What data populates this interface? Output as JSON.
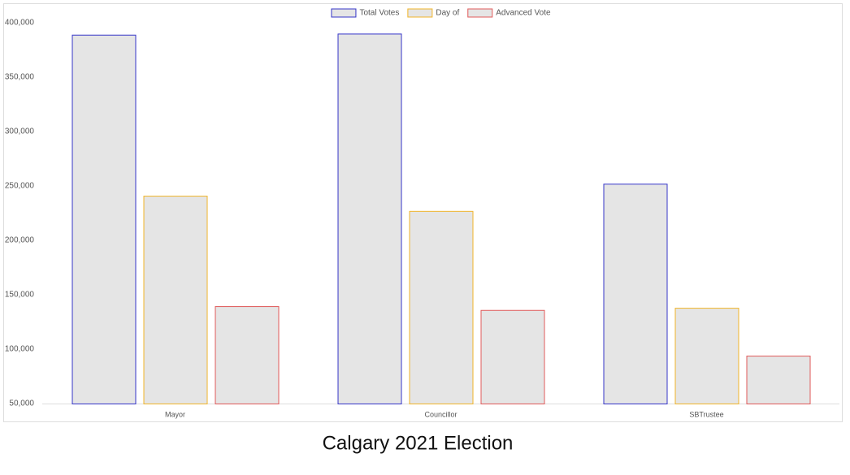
{
  "chart_data": {
    "type": "bar",
    "title": "Calgary 2021 Election",
    "categories": [
      "Mayor",
      "Councillor",
      "SBTrustee"
    ],
    "series": [
      {
        "name": "Total Votes",
        "color": "#3535c8",
        "values": [
          389000,
          390000,
          252000
        ]
      },
      {
        "name": "Day of",
        "color": "#f0b429",
        "values": [
          241000,
          227000,
          138000
        ]
      },
      {
        "name": "Advanced Vote",
        "color": "#e05a5a",
        "values": [
          139500,
          136000,
          94000
        ]
      }
    ],
    "bar_fill": "#e5e5e5",
    "ylim": [
      50000,
      400000
    ],
    "yticks": [
      {
        "value": 50000,
        "label": "50,000"
      },
      {
        "value": 100000,
        "label": "100,000"
      },
      {
        "value": 150000,
        "label": "150,000"
      },
      {
        "value": 200000,
        "label": "200,000"
      },
      {
        "value": 250000,
        "label": "250,000"
      },
      {
        "value": 300000,
        "label": "300,000"
      },
      {
        "value": 350000,
        "label": "350,000"
      },
      {
        "value": 400000,
        "label": "400,000"
      }
    ],
    "grid": false,
    "legend": "top"
  }
}
